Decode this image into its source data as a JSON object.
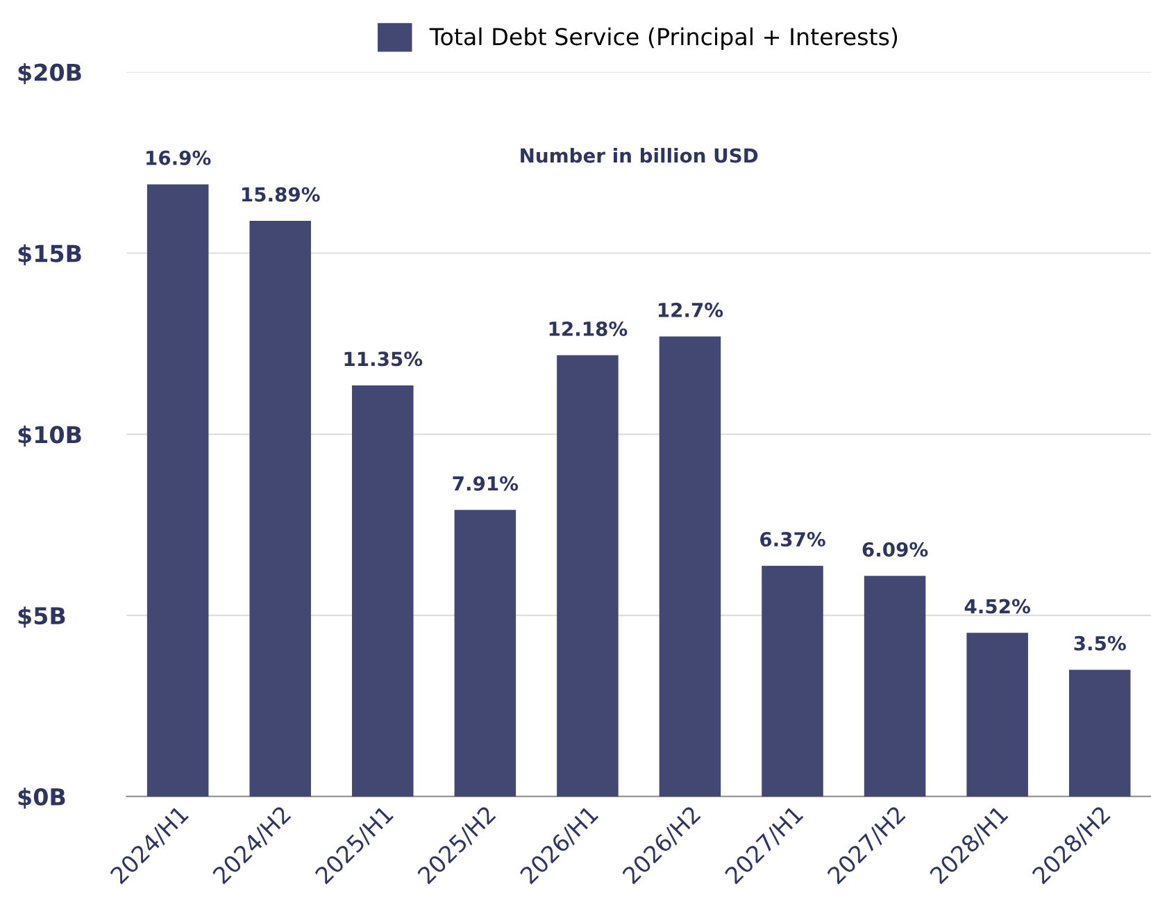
{
  "chart_data": {
    "type": "bar",
    "categories": [
      "2024/H1",
      "2024/H2",
      "2025/H1",
      "2025/H2",
      "2026/H1",
      "2026/H2",
      "2027/H1",
      "2027/H2",
      "2028/H1",
      "2028/H2"
    ],
    "series": [
      {
        "name": "Total Debt Service (Principal + Interests)",
        "color": "#434872",
        "values": [
          16.9,
          15.89,
          11.35,
          7.91,
          12.18,
          12.7,
          6.37,
          6.09,
          4.52,
          3.5
        ],
        "value_labels": [
          "16.9%",
          "15.89%",
          "11.35%",
          "7.91%",
          "12.18%",
          "12.7%",
          "6.37%",
          "6.09%",
          "4.52%",
          "3.5%"
        ]
      }
    ],
    "ylim": [
      0,
      20
    ],
    "yticks": [
      {
        "value": 0,
        "label": "$0B"
      },
      {
        "value": 5,
        "label": "$5B"
      },
      {
        "value": 10,
        "label": "$10B"
      },
      {
        "value": 15,
        "label": "$15B"
      },
      {
        "value": 20,
        "label": "$20B"
      }
    ],
    "annotations": [
      "Number in billion USD"
    ],
    "grid": "y",
    "legend": "top"
  }
}
